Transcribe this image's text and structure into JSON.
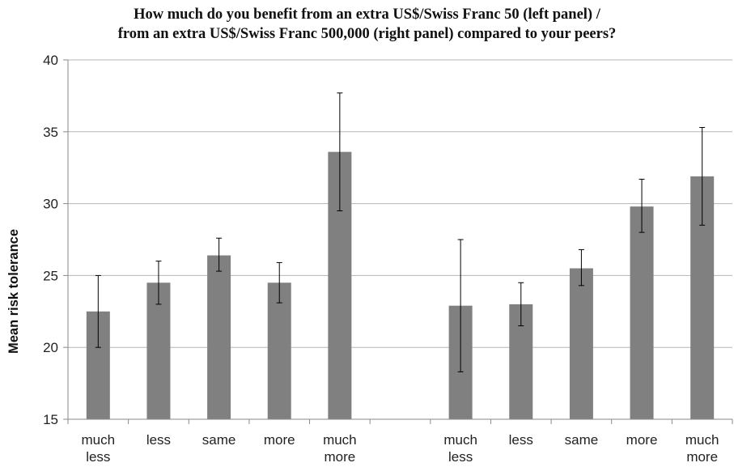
{
  "chart_data": {
    "type": "bar",
    "title_lines": [
      "How much do you benefit from an extra US$/Swiss Franc 50 (left panel) /",
      "from an extra US$/Swiss Franc 500,000 (right panel) compared to your peers?"
    ],
    "ylabel": "Mean risk tolerance",
    "xlabel": "",
    "ylim": [
      15,
      40
    ],
    "yticks": [
      15,
      20,
      25,
      30,
      35,
      40
    ],
    "grid": true,
    "legend": "none",
    "bar_color": "#808080",
    "categories": [
      "much less",
      "less",
      "same",
      "more",
      "much more",
      "",
      "much less",
      "less",
      "same",
      "more",
      "much more"
    ],
    "values": [
      22.5,
      24.5,
      26.4,
      24.5,
      33.6,
      null,
      22.9,
      23.0,
      25.5,
      29.8,
      31.9
    ],
    "err_low": [
      20.0,
      23.0,
      25.3,
      23.1,
      29.5,
      null,
      18.3,
      21.5,
      24.3,
      28.0,
      28.5
    ],
    "err_high": [
      25.0,
      26.0,
      27.6,
      25.9,
      37.7,
      null,
      27.5,
      24.5,
      26.8,
      31.7,
      35.3
    ]
  }
}
